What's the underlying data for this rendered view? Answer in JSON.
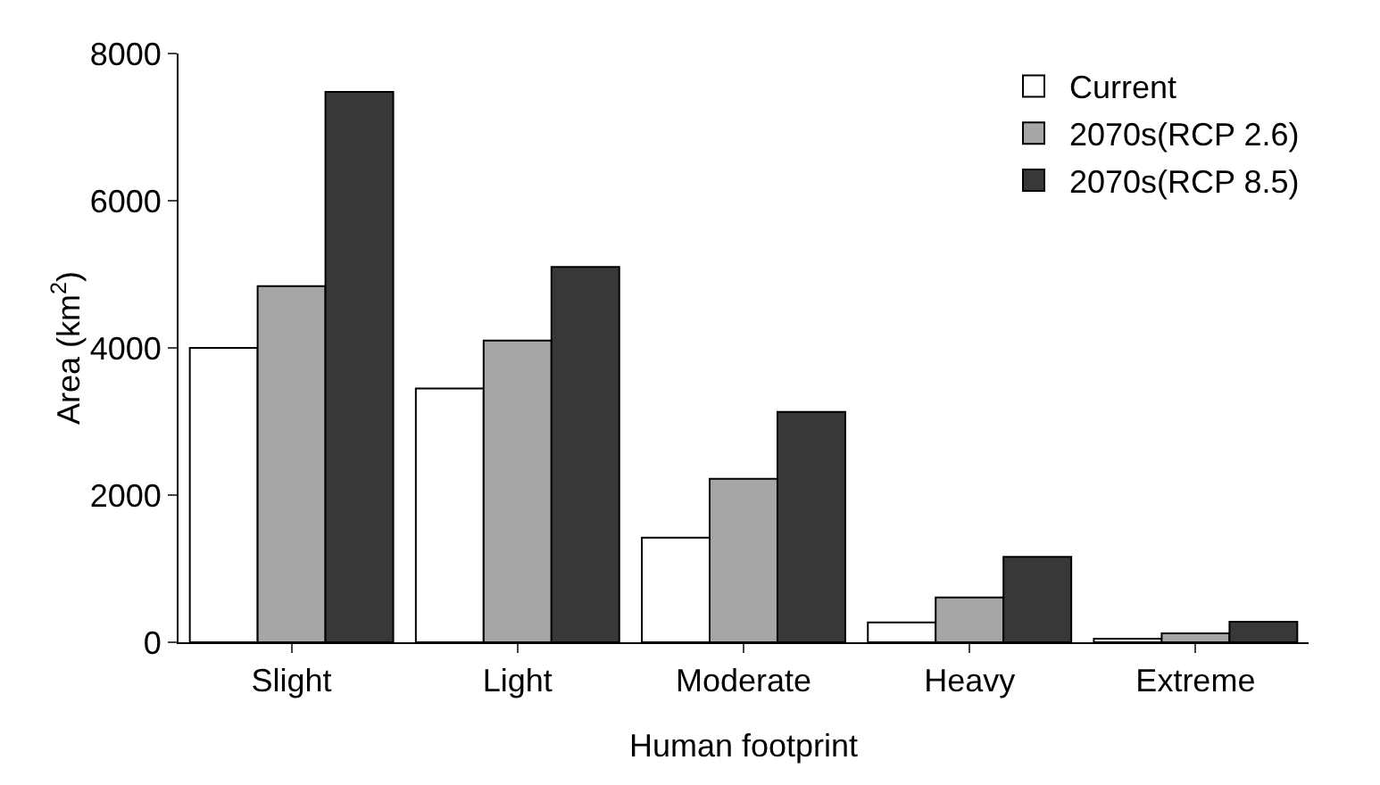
{
  "chart_data": {
    "type": "bar",
    "xlabel": "Human footprint",
    "ylabel": "Area (km$^{2}$)",
    "categories": [
      "Slight",
      "Light",
      "Moderate",
      "Heavy",
      "Extreme"
    ],
    "series": [
      {
        "name": "Current",
        "color": "#ffffff",
        "values": [
          4000,
          3450,
          1420,
          270,
          50
        ]
      },
      {
        "name": "2070s(RCP 2.6)",
        "color": "#a6a6a6",
        "values": [
          4840,
          4100,
          2220,
          610,
          120
        ]
      },
      {
        "name": "2070s(RCP 8.5)",
        "color": "#383838",
        "values": [
          7480,
          5100,
          3130,
          1160,
          280
        ]
      }
    ],
    "ylim": [
      0,
      8000
    ],
    "yticks": [
      0,
      2000,
      4000,
      6000,
      8000
    ],
    "grid": false,
    "legend": "top right"
  }
}
